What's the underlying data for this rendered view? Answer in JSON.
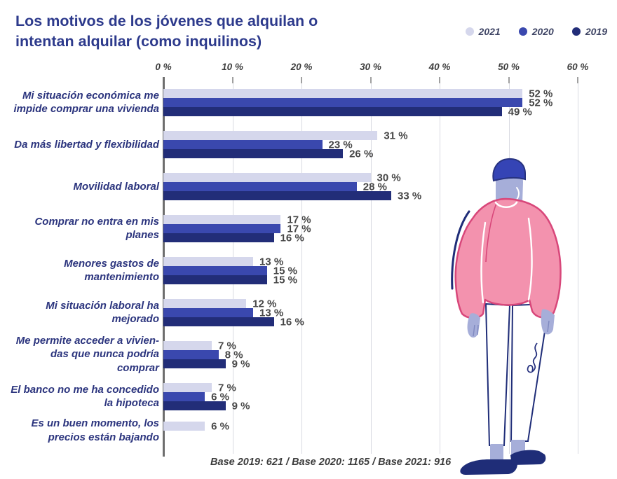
{
  "title": "Los motivos de los jóvenes que alquilan o\nintentan alquilar (como inquilinos)",
  "footer": "Base 2019: 621 / Base 2020: 1165 / Base 2021: 916",
  "illustration": "young-person-in-pink-sweater-illustration",
  "colors": {
    "title_navy": "#2d3a8c",
    "category_navy": "#2c357e",
    "value_text": "#474747",
    "gridline": "#d9dae2",
    "axis_line": "#6e6e6e"
  },
  "chart_data": {
    "type": "bar",
    "orientation": "horizontal",
    "title": "Los motivos de los jóvenes que alquilan o intentan alquilar (como inquilinos)",
    "categories": [
      "Mi situación económica me\nimpide comprar una vivienda",
      "Da más libertad y flexibilidad",
      "Movilidad laboral",
      "Comprar no entra en mis\nplanes",
      "Menores gastos de\nmantenimiento",
      "Mi situación laboral ha\nmejorado",
      "Me permite acceder a  vivien-\ndas que nunca podría comprar",
      "El banco no me ha concedido\nla hipoteca",
      "Es un buen momento, los\nprecios están bajando"
    ],
    "series": [
      {
        "name": "2021",
        "color": "#d5d7ec",
        "values": [
          52,
          31,
          30,
          17,
          13,
          12,
          7,
          7,
          6
        ]
      },
      {
        "name": "2020",
        "color": "#3a48ae",
        "values": [
          52,
          23,
          28,
          17,
          15,
          13,
          8,
          6,
          null
        ]
      },
      {
        "name": "2019",
        "color": "#222d78",
        "values": [
          49,
          26,
          33,
          16,
          15,
          16,
          9,
          9,
          null
        ]
      }
    ],
    "value_suffix": " %",
    "xlim": [
      0,
      60
    ],
    "xticks": [
      0,
      10,
      20,
      30,
      40,
      50,
      60
    ],
    "xtick_labels": [
      "0 %",
      "10 %",
      "20 %",
      "30 %",
      "40 %",
      "50 %",
      "60 %"
    ],
    "grid": true,
    "legend_position": "top-right",
    "legend_entries": [
      "2021",
      "2020",
      "2019"
    ]
  }
}
